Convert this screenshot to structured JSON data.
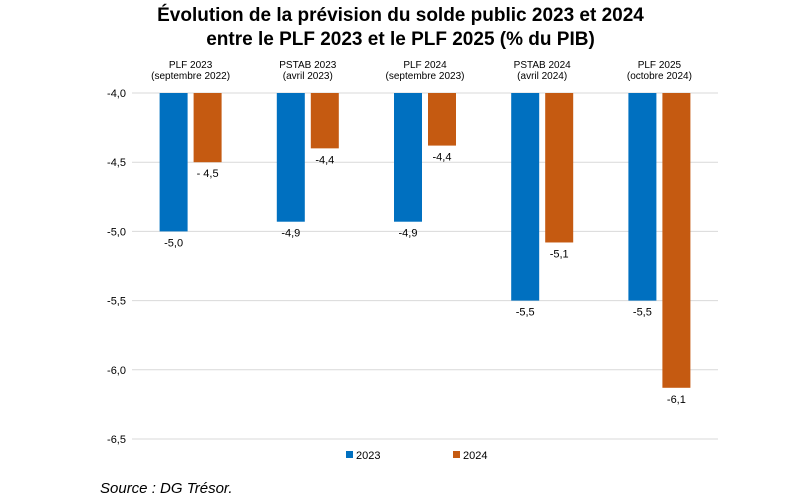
{
  "chart_data": {
    "type": "bar",
    "title_line1": "Évolution de la prévision du solde public 2023 et 2024",
    "title_line2": "entre le PLF 2023 et le PLF 2025 (% du PIB)",
    "categories": [
      [
        "PLF 2023",
        "(septembre 2022)"
      ],
      [
        "PSTAB 2023",
        "(avril 2023)"
      ],
      [
        "PLF 2024",
        "(septembre 2023)"
      ],
      [
        "PSTAB 2024",
        "(avril 2024)"
      ],
      [
        "PLF 2025",
        "(octobre 2024)"
      ]
    ],
    "series": [
      {
        "name": "2023",
        "color": "#0070C0",
        "values": [
          -5.0,
          -4.93,
          -4.93,
          -5.5,
          -5.5
        ],
        "labels": [
          "-5,0",
          "-4,9",
          "-4,9",
          "-5,5",
          "-5,5"
        ]
      },
      {
        "name": "2024",
        "color": "#C55A11",
        "values": [
          -4.5,
          -4.4,
          -4.38,
          -5.08,
          -6.13
        ],
        "labels": [
          "- 4,5",
          "-4,4",
          "-4,4",
          "-5,1",
          "-6,1"
        ]
      }
    ],
    "ylim": [
      -6.5,
      -4.0
    ],
    "yticks": [
      -4.0,
      -4.5,
      -5.0,
      -5.5,
      -6.0,
      -6.5
    ],
    "ytick_labels": [
      "-4,0",
      "-4,5",
      "-5,0",
      "-5,5",
      "-6,0",
      "-6,5"
    ],
    "grid": true,
    "legend_position": "bottom",
    "source": "Source : DG Trésor."
  }
}
